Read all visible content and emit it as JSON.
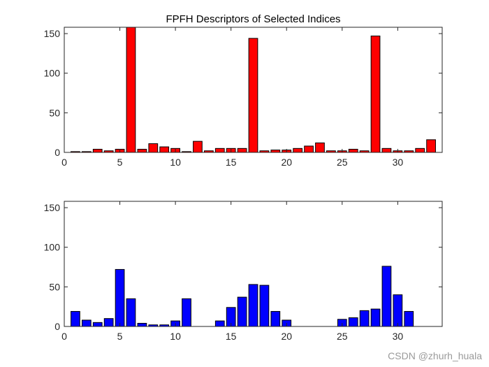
{
  "chart_data": [
    {
      "type": "bar",
      "title": "FPFH Descriptors of Selected Indices",
      "xlabel": "",
      "ylabel": "",
      "xlim": [
        0,
        34
      ],
      "ylim": [
        0,
        158
      ],
      "xticks": [
        0,
        5,
        10,
        15,
        20,
        25,
        30
      ],
      "yticks": [
        0,
        50,
        100,
        150
      ],
      "grid": false,
      "color": "#ff0000",
      "x": [
        1,
        2,
        3,
        4,
        5,
        6,
        7,
        8,
        9,
        10,
        11,
        12,
        13,
        14,
        15,
        16,
        17,
        18,
        19,
        20,
        21,
        22,
        23,
        24,
        25,
        26,
        27,
        28,
        29,
        30,
        31,
        32,
        33
      ],
      "values": [
        1,
        1,
        4,
        2,
        4,
        158,
        4,
        11,
        7,
        5,
        1,
        14,
        2,
        5,
        5,
        5,
        144,
        2,
        3,
        3,
        5,
        8,
        12,
        2,
        2,
        4,
        2,
        147,
        5,
        2,
        2,
        5,
        16
      ]
    },
    {
      "type": "bar",
      "title": "",
      "xlabel": "",
      "ylabel": "",
      "xlim": [
        0,
        34
      ],
      "ylim": [
        0,
        158
      ],
      "xticks": [
        0,
        5,
        10,
        15,
        20,
        25,
        30
      ],
      "yticks": [
        0,
        50,
        100,
        150
      ],
      "grid": false,
      "color": "#0000ff",
      "x": [
        1,
        2,
        3,
        4,
        5,
        6,
        7,
        8,
        9,
        10,
        11,
        12,
        13,
        14,
        15,
        16,
        17,
        18,
        19,
        20,
        21,
        22,
        23,
        24,
        25,
        26,
        27,
        28,
        29,
        30,
        31,
        32,
        33
      ],
      "values": [
        19,
        8,
        5,
        10,
        72,
        35,
        4,
        2,
        2,
        7,
        35,
        0,
        0,
        7,
        24,
        37,
        53,
        52,
        19,
        8,
        0,
        0,
        0,
        0,
        9,
        11,
        20,
        22,
        76,
        40,
        19,
        0,
        0
      ]
    }
  ],
  "watermark": "CSDN @zhurh_huala"
}
